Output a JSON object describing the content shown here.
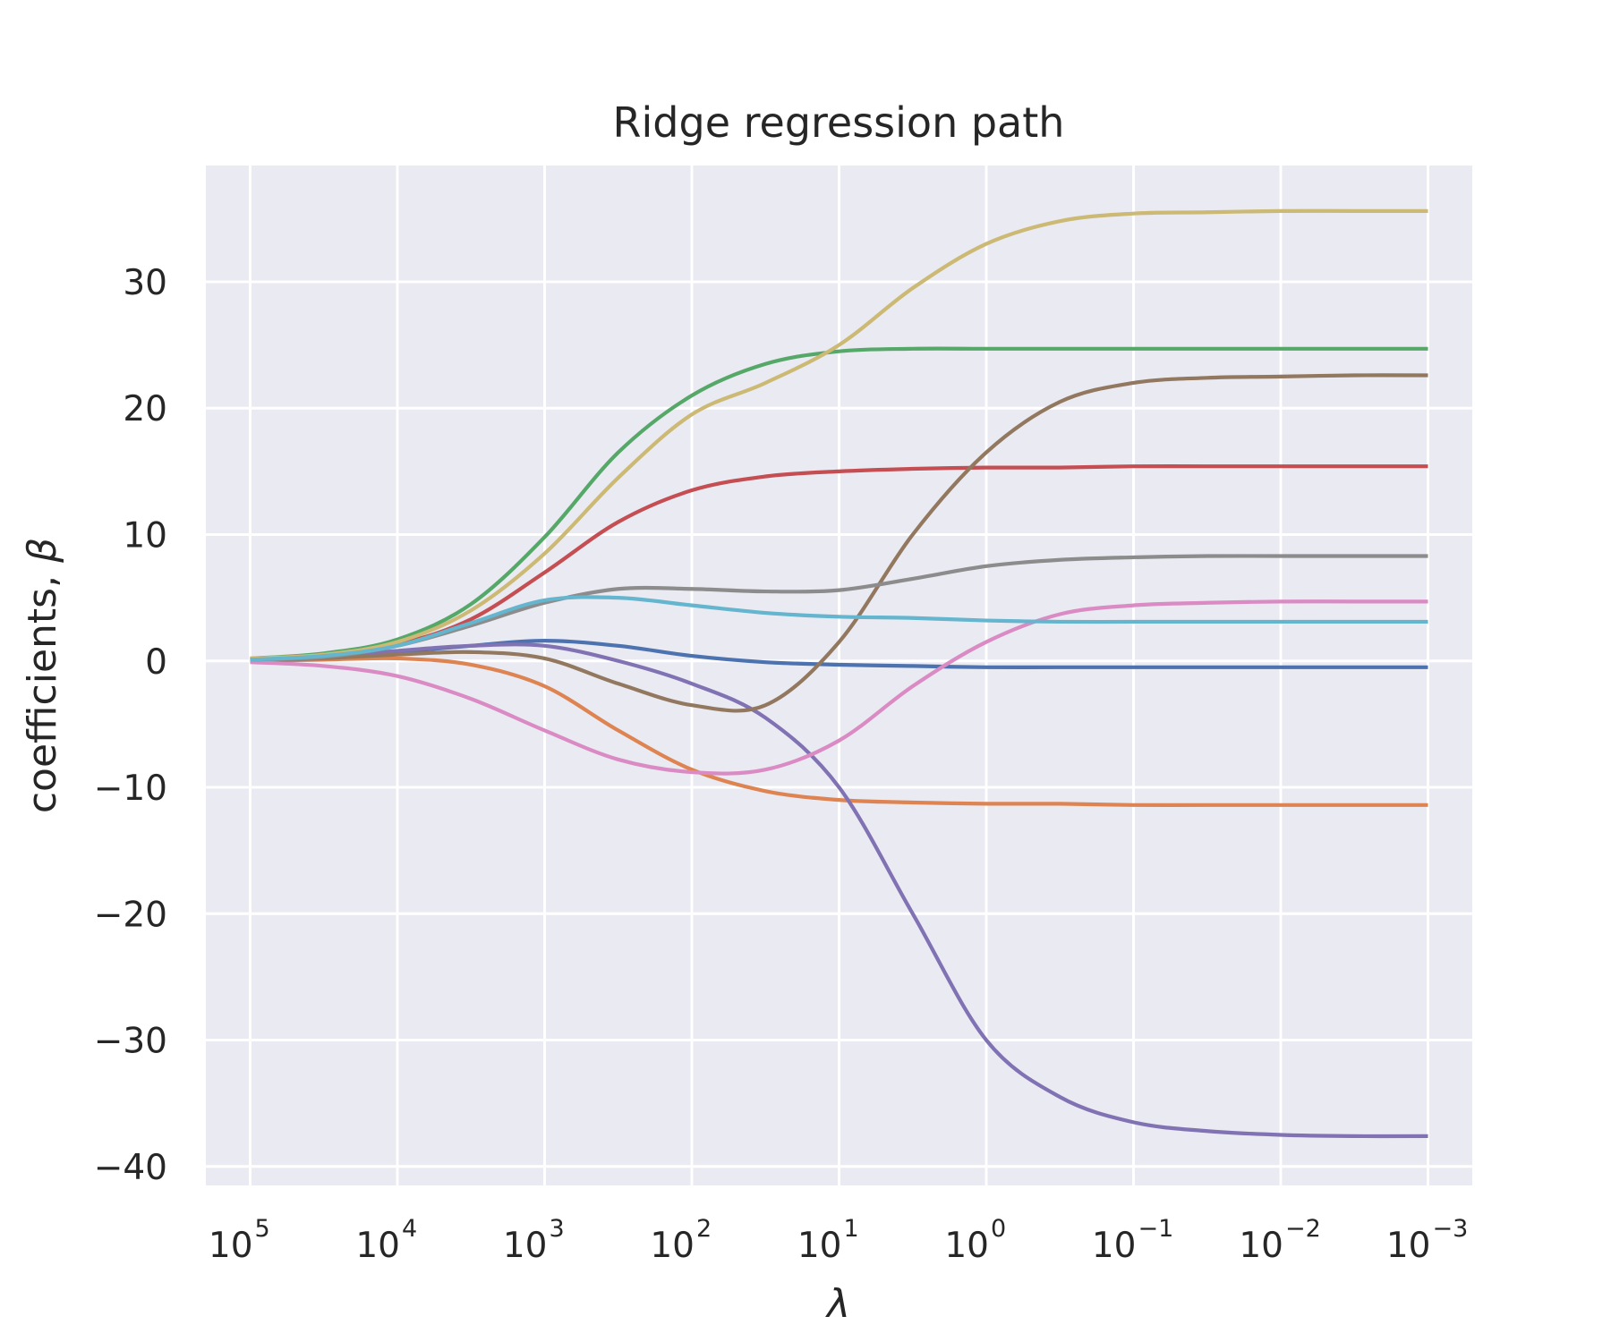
{
  "chart_data": {
    "type": "line",
    "title": "Ridge regression path",
    "xlabel": "λ",
    "ylabel": "coefficients, ",
    "ylabel_symbol": "β",
    "x_scale": "log",
    "x_reversed": true,
    "xlim": [
      200000,
      0.0005
    ],
    "ylim": [
      -41.5,
      39.2
    ],
    "grid": true,
    "x_ticks": [
      {
        "value": 100000,
        "base": "10",
        "exp": "5"
      },
      {
        "value": 10000,
        "base": "10",
        "exp": "4"
      },
      {
        "value": 1000,
        "base": "10",
        "exp": "3"
      },
      {
        "value": 100,
        "base": "10",
        "exp": "2"
      },
      {
        "value": 10,
        "base": "10",
        "exp": "1"
      },
      {
        "value": 1,
        "base": "10",
        "exp": "0"
      },
      {
        "value": 0.1,
        "base": "10",
        "exp": "−1"
      },
      {
        "value": 0.01,
        "base": "10",
        "exp": "−2"
      },
      {
        "value": 0.001,
        "base": "10",
        "exp": "−3"
      }
    ],
    "y_ticks": [
      {
        "value": 30,
        "label": "30"
      },
      {
        "value": 20,
        "label": "20"
      },
      {
        "value": 10,
        "label": "10"
      },
      {
        "value": 0,
        "label": "0"
      },
      {
        "value": -10,
        "label": "−10"
      },
      {
        "value": -20,
        "label": "−20"
      },
      {
        "value": -30,
        "label": "−30"
      },
      {
        "value": -40,
        "label": "−40"
      }
    ],
    "x": [
      100000,
      31623,
      10000,
      3162,
      1000,
      316,
      100,
      31.6,
      10,
      3.16,
      1,
      0.316,
      0.1,
      0.0316,
      0.01,
      0.00316,
      0.001
    ],
    "series": [
      {
        "color": "#4c72b0",
        "values": [
          0.1,
          0.3,
          0.7,
          1.2,
          1.6,
          1.2,
          0.4,
          -0.1,
          -0.3,
          -0.4,
          -0.5,
          -0.5,
          -0.5,
          -0.5,
          -0.5,
          -0.5,
          -0.5
        ]
      },
      {
        "color": "#dd8452",
        "values": [
          0.0,
          0.1,
          0.2,
          -0.3,
          -2.0,
          -5.5,
          -8.6,
          -10.3,
          -11.0,
          -11.2,
          -11.3,
          -11.3,
          -11.4,
          -11.4,
          -11.4,
          -11.4,
          -11.4
        ]
      },
      {
        "color": "#55a868",
        "values": [
          0.2,
          0.6,
          1.7,
          4.5,
          9.8,
          16.5,
          21.0,
          23.5,
          24.5,
          24.7,
          24.7,
          24.7,
          24.7,
          24.7,
          24.7,
          24.7,
          24.7
        ]
      },
      {
        "color": "#c44e52",
        "values": [
          0.1,
          0.4,
          1.3,
          3.3,
          7.0,
          11.0,
          13.5,
          14.6,
          15.0,
          15.2,
          15.3,
          15.3,
          15.4,
          15.4,
          15.4,
          15.4,
          15.4
        ]
      },
      {
        "color": "#8172b3",
        "values": [
          0.0,
          0.3,
          0.8,
          1.2,
          1.2,
          0.0,
          -1.8,
          -4.5,
          -10.0,
          -20.0,
          -30.0,
          -34.5,
          -36.5,
          -37.2,
          -37.5,
          -37.6,
          -37.6
        ]
      },
      {
        "color": "#937860",
        "values": [
          0.0,
          0.2,
          0.5,
          0.7,
          0.2,
          -1.8,
          -3.5,
          -3.5,
          1.5,
          10.0,
          16.5,
          20.5,
          22.0,
          22.4,
          22.5,
          22.6,
          22.6
        ]
      },
      {
        "color": "#da8bc3",
        "values": [
          -0.1,
          -0.4,
          -1.2,
          -3.0,
          -5.5,
          -7.8,
          -8.8,
          -8.6,
          -6.3,
          -2.0,
          1.5,
          3.7,
          4.4,
          4.6,
          4.7,
          4.7,
          4.7
        ]
      },
      {
        "color": "#8c8c8c",
        "values": [
          0.1,
          0.3,
          1.2,
          2.8,
          4.6,
          5.7,
          5.7,
          5.5,
          5.6,
          6.5,
          7.5,
          8.0,
          8.2,
          8.3,
          8.3,
          8.3,
          8.3
        ]
      },
      {
        "color": "#ccb974",
        "values": [
          0.2,
          0.5,
          1.5,
          4.0,
          8.5,
          14.5,
          19.5,
          22.0,
          25.0,
          29.5,
          33.0,
          34.8,
          35.4,
          35.5,
          35.6,
          35.6,
          35.6
        ]
      },
      {
        "color": "#64b5cd",
        "values": [
          0.1,
          0.4,
          1.2,
          3.0,
          4.8,
          5.0,
          4.4,
          3.8,
          3.5,
          3.4,
          3.2,
          3.1,
          3.1,
          3.1,
          3.1,
          3.1,
          3.1
        ]
      }
    ]
  }
}
